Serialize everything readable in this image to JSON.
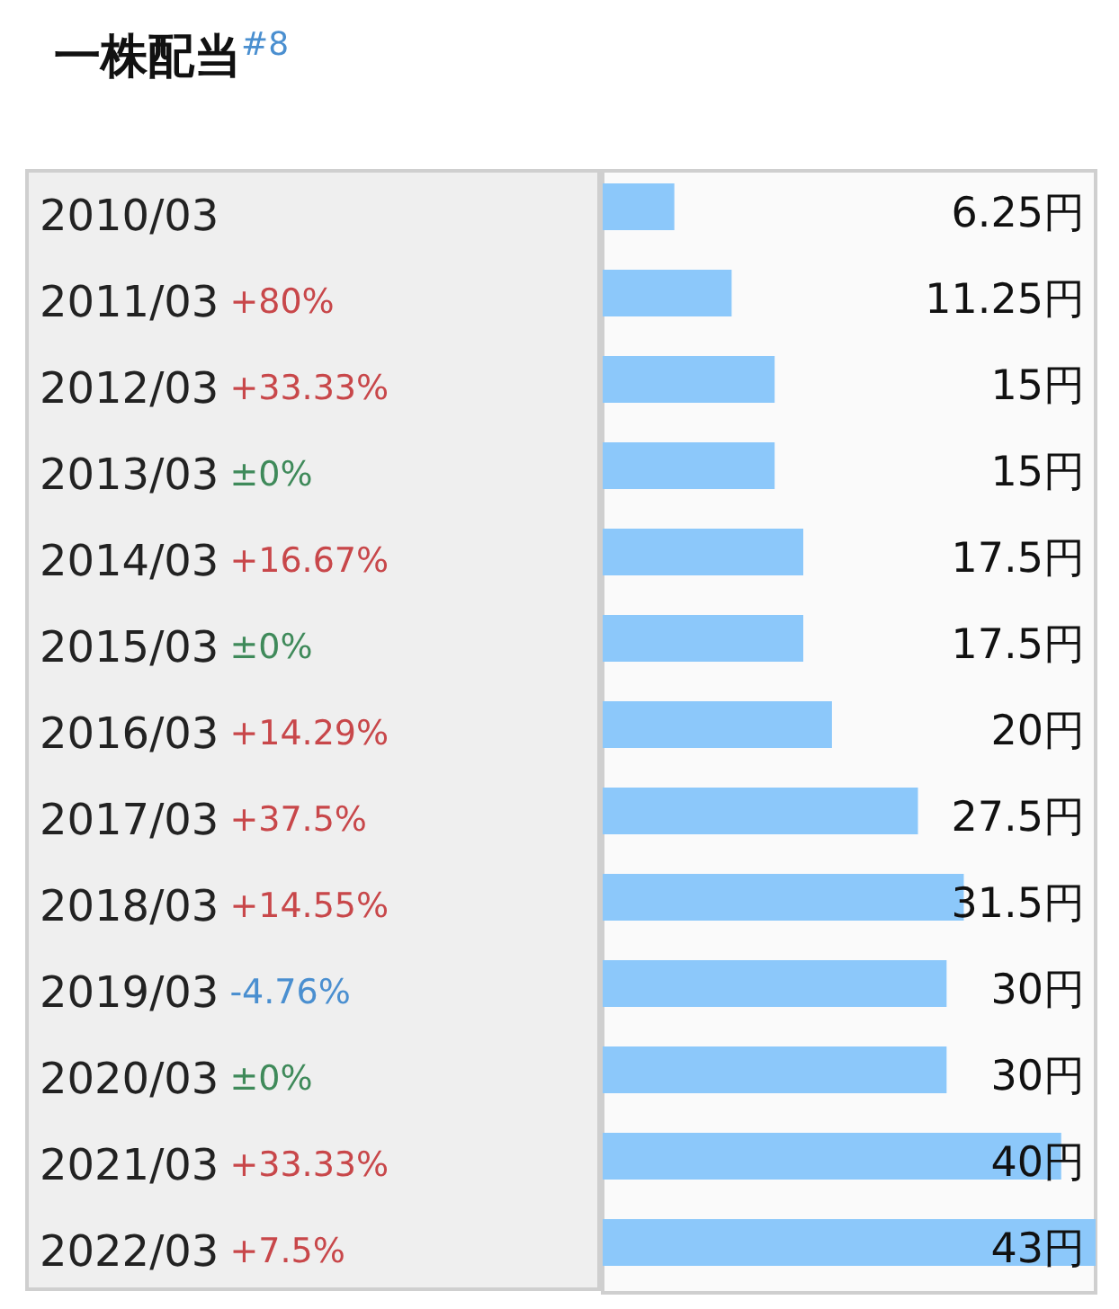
{
  "chart_data": {
    "type": "bar",
    "orientation": "horizontal",
    "title": "一株配当$^{#8}$",
    "categories": [
      "2010/03",
      "2011/03 +80%",
      "2012/03 +33.33%",
      "2013/03 ±0%",
      "2014/03 +16.67%",
      "2015/03 ±0%",
      "2016/03 +14.29%",
      "2017/03 +37.5%",
      "2018/03 +14.55%",
      "2019/03 -4.76%",
      "2020/03 ±0%",
      "2021/03 +33.33%",
      "2022/03 +7.5%"
    ],
    "values": [
      6.25,
      11.25,
      15,
      15,
      17.5,
      17.5,
      20,
      27.5,
      31.5,
      30,
      30,
      40,
      43
    ],
    "value_labels": [
      "6.25円",
      "11.25円",
      "15円",
      "15円",
      "17.5円",
      "17.5円",
      "20円",
      "27.5円",
      "31.5円",
      "30円",
      "30円",
      "40円",
      "43円"
    ],
    "color": "#8cc8fa"
  }
}
